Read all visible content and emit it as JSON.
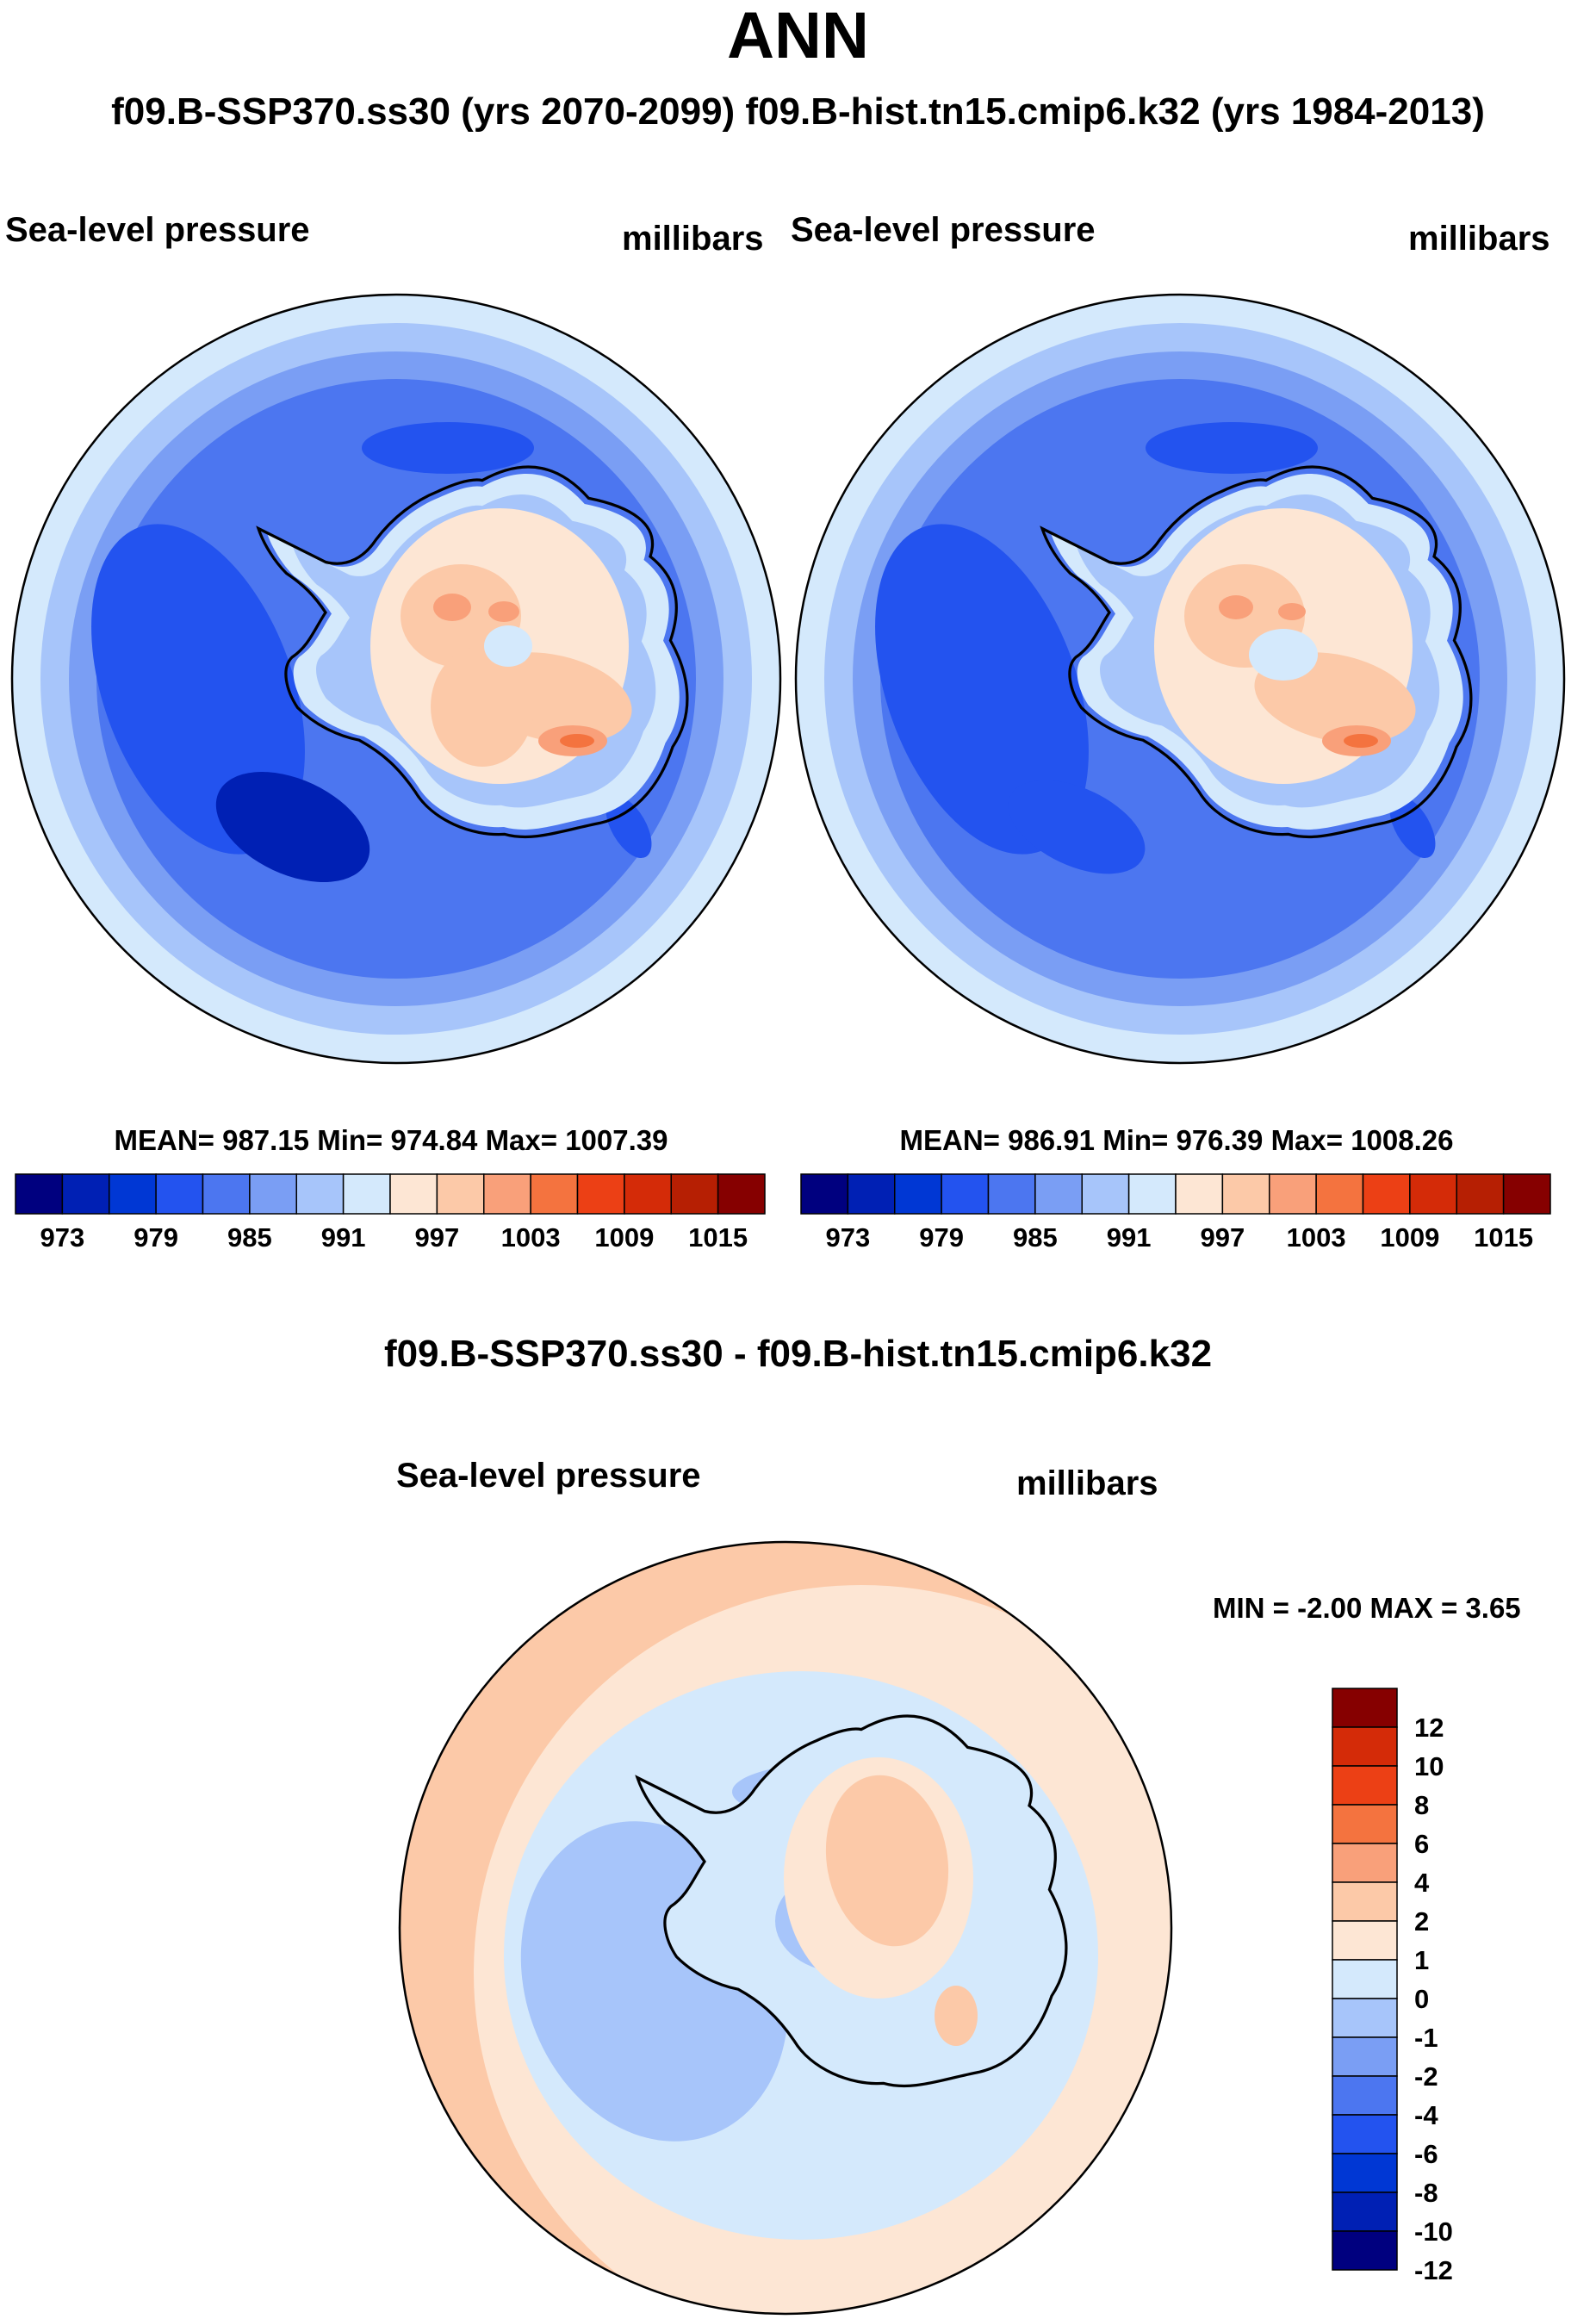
{
  "page": {
    "title": "ANN",
    "subtitle": "f09.B-SSP370.ss30 (yrs 2070-2099)  f09.B-hist.tn15.cmip6.k32 (yrs 1984-2013)"
  },
  "colors": {
    "abs_fill": [
      "#00007f",
      "#0020b4",
      "#0037d4",
      "#2353ef",
      "#4c76f0",
      "#7a9ef4",
      "#a7c5fa",
      "#d4e9fc",
      "#fde6d4",
      "#fcc9a8",
      "#f9a07a",
      "#f4733f",
      "#ec4015",
      "#d42b08",
      "#b61f03",
      "#860000"
    ],
    "diff_fill": [
      "#00007f",
      "#0020b4",
      "#0037d4",
      "#2353ef",
      "#4c76f0",
      "#7a9ef4",
      "#a7c5fa",
      "#d4e9fc",
      "#fde6d4",
      "#fcc9a8",
      "#f9a07a",
      "#f4733f",
      "#ec4015",
      "#d42b08",
      "#860000"
    ],
    "coastline": "#000000"
  },
  "chart_data": [
    {
      "type": "heatmap",
      "projection": "south-polar-stereographic",
      "case": "f09.B-SSP370.ss30 (yrs 2070-2099)",
      "variable": "Sea-level pressure",
      "units": "millibars",
      "stats": {
        "mean": 987.15,
        "min": 974.84,
        "max": 1007.39
      },
      "stats_text": "MEAN= 987.15  Min= 974.84  Max= 1007.39",
      "contour_levels": [
        973,
        976,
        979,
        982,
        985,
        988,
        991,
        994,
        997,
        1000,
        1003,
        1006,
        1009,
        1012,
        1015
      ],
      "tick_labels": [
        "973",
        "979",
        "985",
        "991",
        "997",
        "1003",
        "1009",
        "1015"
      ],
      "colorbar": "horizontal"
    },
    {
      "type": "heatmap",
      "projection": "south-polar-stereographic",
      "case": "f09.B-hist.tn15.cmip6.k32 (yrs 1984-2013)",
      "variable": "Sea-level pressure",
      "units": "millibars",
      "stats": {
        "mean": 986.91,
        "min": 976.39,
        "max": 1008.26
      },
      "stats_text": "MEAN= 986.91  Min= 976.39  Max= 1008.26",
      "contour_levels": [
        973,
        976,
        979,
        982,
        985,
        988,
        991,
        994,
        997,
        1000,
        1003,
        1006,
        1009,
        1012,
        1015
      ],
      "tick_labels": [
        "973",
        "979",
        "985",
        "991",
        "997",
        "1003",
        "1009",
        "1015"
      ],
      "colorbar": "horizontal"
    },
    {
      "type": "heatmap",
      "projection": "south-polar-stereographic",
      "title": "f09.B-SSP370.ss30 - f09.B-hist.tn15.cmip6.k32",
      "variable": "Sea-level pressure",
      "units": "millibars",
      "stats": {
        "min": -2.0,
        "max": 3.65
      },
      "stats_text": "MIN =  -2.00 MAX =   3.65",
      "contour_levels": [
        -12,
        -10,
        -8,
        -6,
        -4,
        -2,
        -1,
        0,
        1,
        2,
        4,
        6,
        8,
        10,
        12
      ],
      "tick_labels": [
        "12",
        "10",
        "8",
        "6",
        "4",
        "2",
        "1",
        "0",
        "-1",
        "-2",
        "-4",
        "-6",
        "-8",
        "-10",
        "-12"
      ],
      "colorbar": "vertical-right"
    }
  ]
}
